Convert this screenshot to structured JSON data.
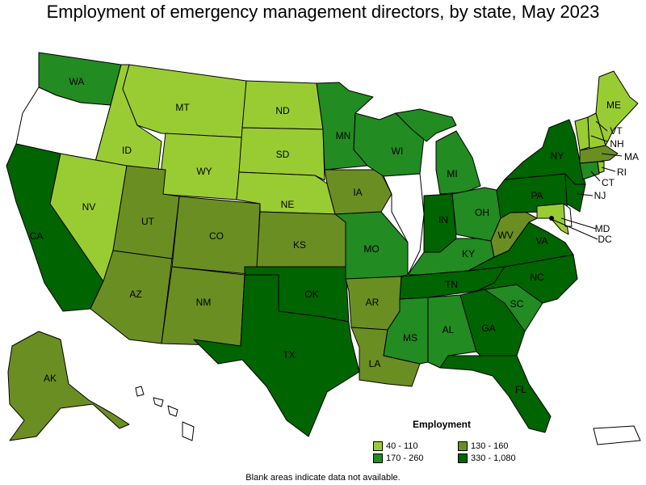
{
  "title": "Employment of emergency management directors, by state, May 2023",
  "legend": {
    "title": "Employment",
    "items": [
      {
        "label": "40 - 110",
        "color": "#99cc33"
      },
      {
        "label": "130 - 160",
        "color": "#6b8e23"
      },
      {
        "label": "170 - 260",
        "color": "#228b22"
      },
      {
        "label": "330 - 1,080",
        "color": "#006400"
      }
    ]
  },
  "note": "Blank areas indicate data not available.",
  "colors": {
    "c1": "#99cc33",
    "c2": "#6b8e23",
    "c3": "#228b22",
    "c4": "#006400",
    "blank": "#ffffff"
  },
  "states": {
    "WA": "WA",
    "OR": "",
    "CA": "CA",
    "ID": "ID",
    "NV": "NV",
    "MT": "MT",
    "WY": "WY",
    "UT": "UT",
    "AZ": "AZ",
    "CO": "CO",
    "NM": "NM",
    "ND": "ND",
    "SD": "SD",
    "NE": "NE",
    "KS": "KS",
    "OK": "OK",
    "TX": "TX",
    "MN": "MN",
    "IA": "IA",
    "MO": "MO",
    "AR": "AR",
    "LA": "LA",
    "WI": "WI",
    "IL": "",
    "MI": "MI",
    "IN": "IN",
    "OH": "OH",
    "KY": "KY",
    "TN": "TN",
    "MS": "MS",
    "AL": "AL",
    "GA": "GA",
    "FL": "FL",
    "SC": "SC",
    "NC": "NC",
    "VA": "VA",
    "WV": "WV",
    "PA": "PA",
    "NY": "NY",
    "ME": "ME",
    "VT": "VT",
    "NH": "NH",
    "MA": "MA",
    "RI": "RI",
    "CT": "CT",
    "NJ": "NJ",
    "MD": "MD",
    "DC": "DC",
    "AK": "AK"
  }
}
